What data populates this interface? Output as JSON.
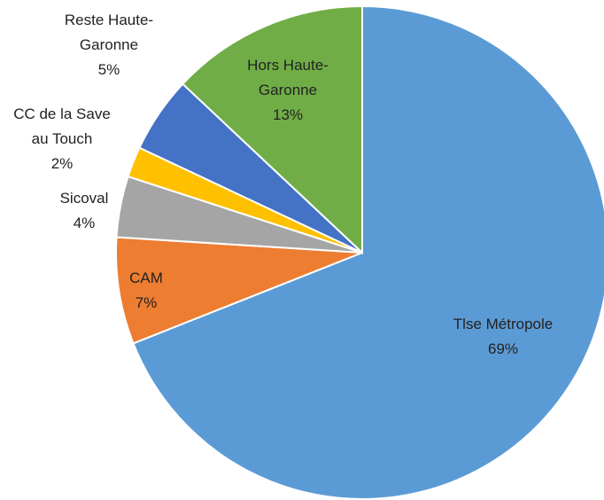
{
  "chart_data": {
    "type": "pie",
    "categories": [
      "Tlse Métropole",
      "CAM",
      "Sicoval",
      "CC de la Save au Touch",
      "Reste Haute-Garonne",
      "Hors Haute-Garonne"
    ],
    "values": [
      69,
      7,
      4,
      2,
      5,
      13
    ],
    "value_labels": [
      "69%",
      "7%",
      "4%",
      "2%",
      "5%",
      "13%"
    ],
    "colors": [
      "#5b9bd5",
      "#ed7d31",
      "#a5a5a5",
      "#ffc000",
      "#4472c4",
      "#70ad47"
    ]
  }
}
